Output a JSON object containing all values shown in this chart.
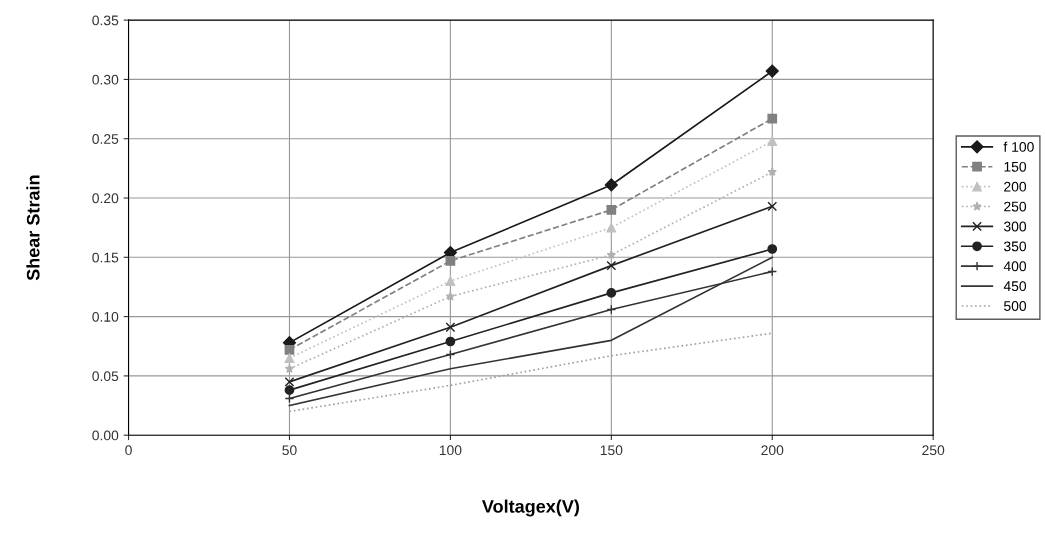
{
  "chart_data": {
    "type": "line",
    "xlabel": "Voltagex(V)",
    "ylabel": "Shear Strain",
    "x": [
      50,
      100,
      150,
      200
    ],
    "xlim": [
      0,
      250
    ],
    "xticks": [
      0,
      50,
      100,
      150,
      200,
      250
    ],
    "ylim": [
      0,
      0.35
    ],
    "yticks": [
      {
        "value": 0,
        "label": "0.00"
      },
      {
        "value": 0.05,
        "label": "0.05"
      },
      {
        "value": 0.1,
        "label": "0.10"
      },
      {
        "value": 0.15,
        "label": "0.15"
      },
      {
        "value": 0.2,
        "label": "0.20"
      },
      {
        "value": 0.25,
        "label": "0.25"
      },
      {
        "value": 0.3,
        "label": "0.30"
      },
      {
        "value": 0.35,
        "label": "0.35"
      }
    ],
    "grid": true,
    "legend": "right",
    "series": [
      {
        "name": "f 100",
        "color": "#1a1a1a",
        "marker": "diamond",
        "line_style": "solid",
        "values": [
          0.078,
          0.154,
          0.211,
          0.307
        ]
      },
      {
        "name": "150",
        "color": "#808080",
        "marker": "square",
        "line_style": "dashed",
        "values": [
          0.072,
          0.147,
          0.19,
          0.267
        ]
      },
      {
        "name": "200",
        "color": "#c0c0c0",
        "marker": "triangle",
        "line_style": "dotted",
        "values": [
          0.065,
          0.13,
          0.175,
          0.248
        ]
      },
      {
        "name": "250",
        "color": "#b0b0b0",
        "marker": "star",
        "line_style": "dotted",
        "values": [
          0.056,
          0.117,
          0.152,
          0.222
        ]
      },
      {
        "name": "300",
        "color": "#222222",
        "marker": "cross",
        "line_style": "solid",
        "values": [
          0.045,
          0.091,
          0.143,
          0.193
        ]
      },
      {
        "name": "350",
        "color": "#222222",
        "marker": "circle",
        "line_style": "solid",
        "values": [
          0.038,
          0.079,
          0.12,
          0.157
        ]
      },
      {
        "name": "400",
        "color": "#333333",
        "marker": "plus",
        "line_style": "solid",
        "values": [
          0.031,
          0.068,
          0.106,
          0.138
        ]
      },
      {
        "name": "450",
        "color": "#333333",
        "marker": "none",
        "line_style": "solid",
        "values": [
          0.025,
          0.056,
          0.08,
          0.15
        ]
      },
      {
        "name": "500",
        "color": "#a0a0a0",
        "marker": "none",
        "line_style": "dotted",
        "values": [
          0.02,
          0.042,
          0.067,
          0.086
        ]
      }
    ]
  }
}
